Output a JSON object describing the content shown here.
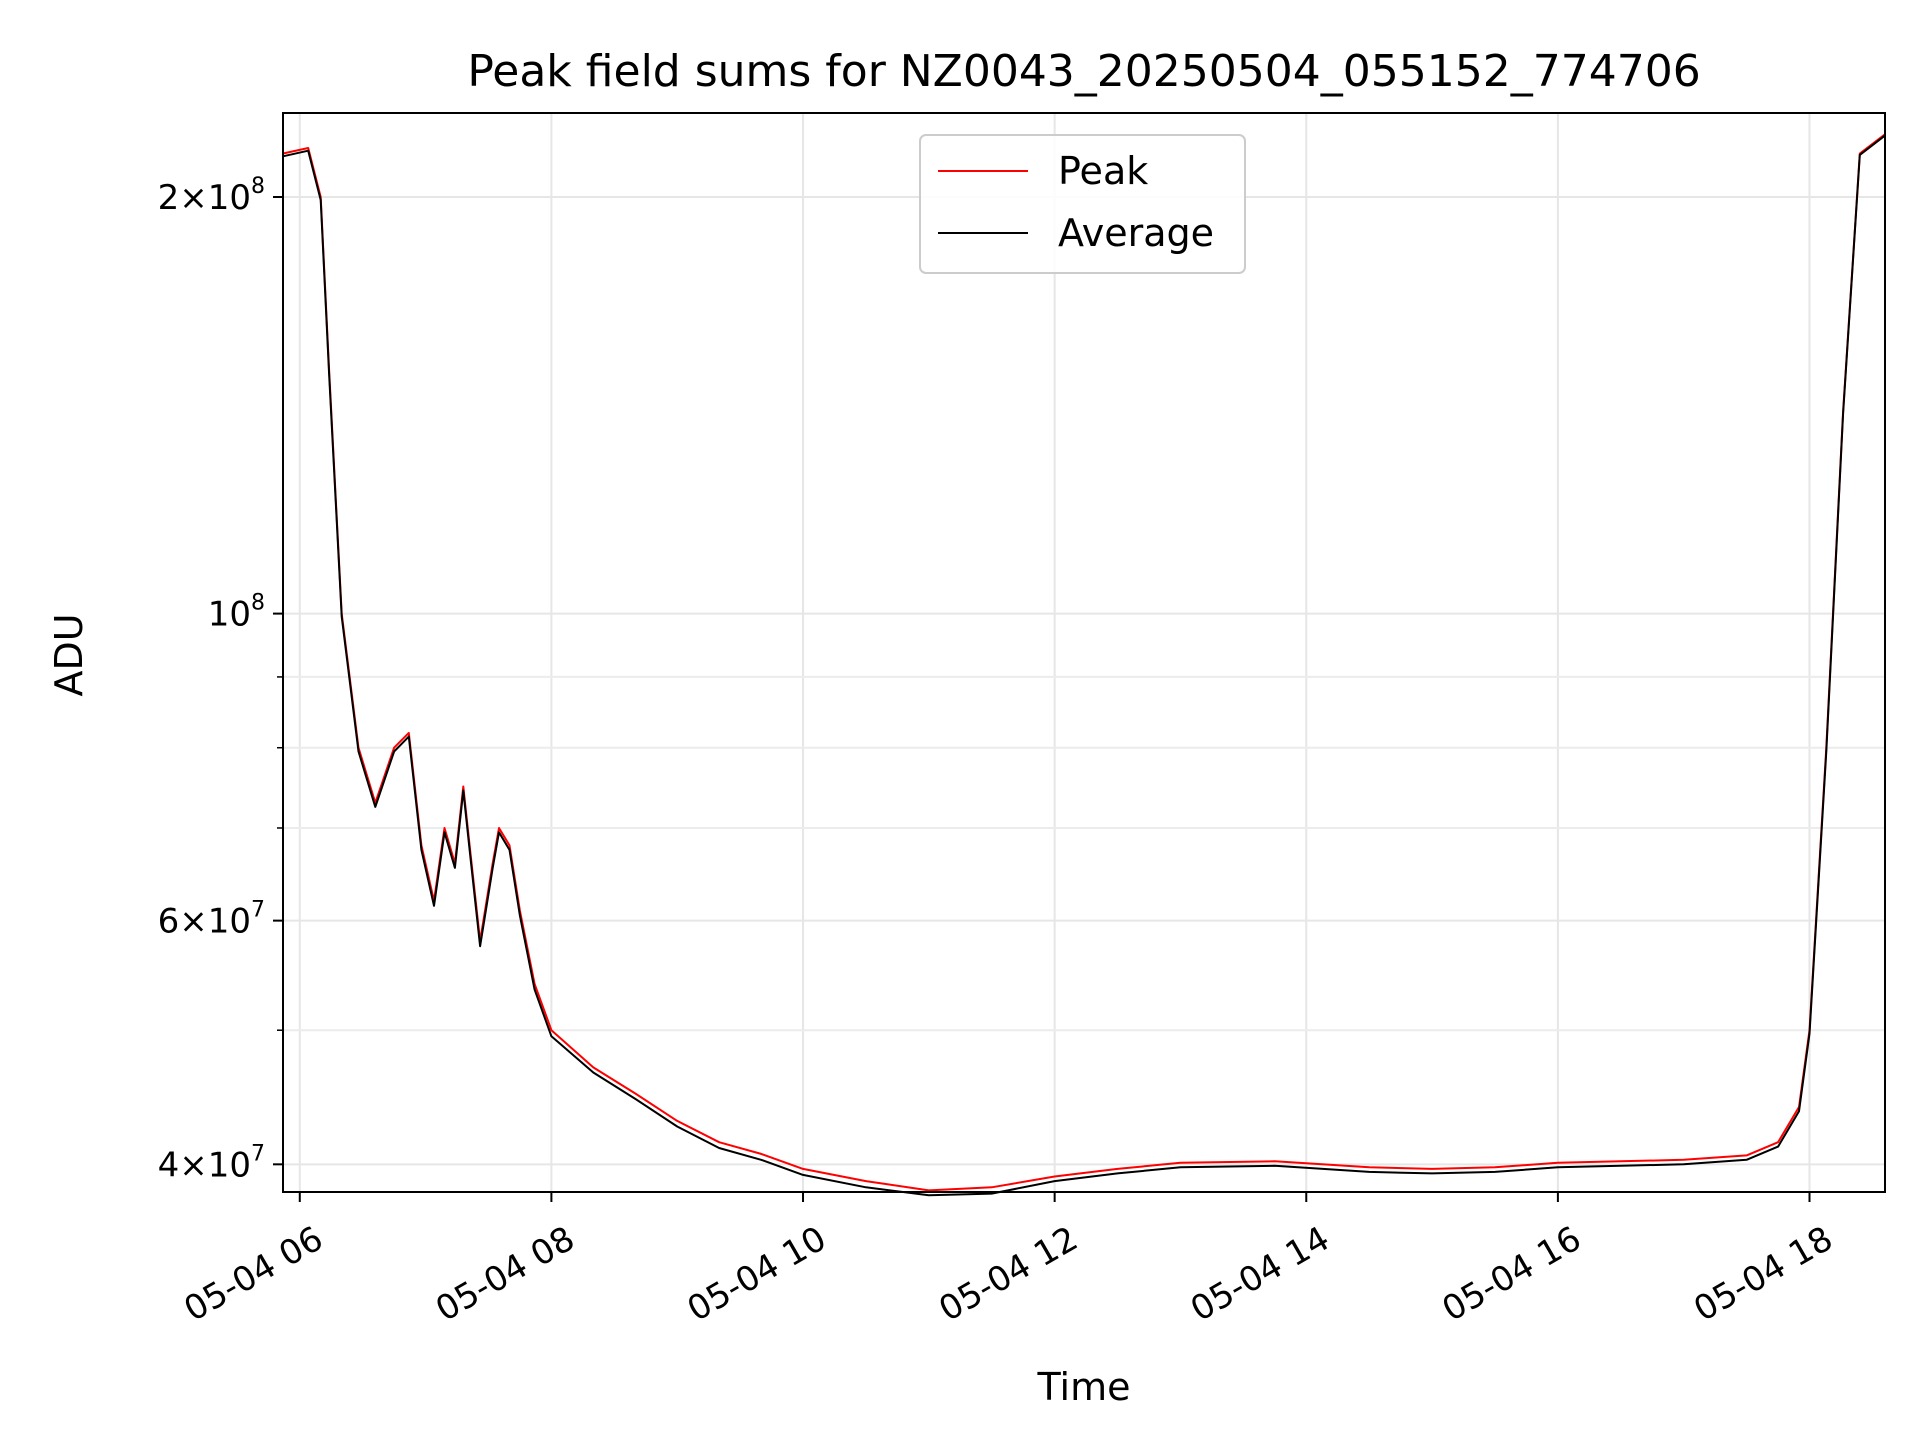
{
  "chart_data": {
    "type": "line",
    "title": "Peak field sums for NZ0043_20250504_055152_774706",
    "xlabel": "Time",
    "ylabel": "ADU",
    "xscale": "time",
    "yscale": "log",
    "grid": true,
    "legend_position": "upper-center",
    "xlim": [
      "2025-05-04 05:52",
      "2025-05-04 18:36"
    ],
    "ylim": [
      38200000,
      230000000
    ],
    "x_ticks": [
      {
        "value": "2025-05-04 06:00",
        "label": "05-04 06"
      },
      {
        "value": "2025-05-04 08:00",
        "label": "05-04 08"
      },
      {
        "value": "2025-05-04 10:00",
        "label": "05-04 10"
      },
      {
        "value": "2025-05-04 12:00",
        "label": "05-04 12"
      },
      {
        "value": "2025-05-04 14:00",
        "label": "05-04 14"
      },
      {
        "value": "2025-05-04 16:00",
        "label": "05-04 16"
      },
      {
        "value": "2025-05-04 18:00",
        "label": "05-04 18"
      }
    ],
    "y_major_ticks": [
      {
        "value": 40000000,
        "mantissa": "4",
        "exponent": "7"
      },
      {
        "value": 60000000,
        "mantissa": "6",
        "exponent": "7"
      },
      {
        "value": 100000000,
        "mantissa": "",
        "exponent": "8"
      },
      {
        "value": 200000000,
        "mantissa": "2",
        "exponent": "8"
      }
    ],
    "y_minor_ticks": [
      50000000,
      70000000,
      80000000,
      90000000
    ],
    "series": [
      {
        "name": "Peak",
        "color": "#ff0000",
        "x": [
          "2025-05-04 05:52",
          "2025-05-04 06:04",
          "2025-05-04 06:10",
          "2025-05-04 06:14",
          "2025-05-04 06:20",
          "2025-05-04 06:28",
          "2025-05-04 06:36",
          "2025-05-04 06:45",
          "2025-05-04 06:52",
          "2025-05-04 06:58",
          "2025-05-04 07:04",
          "2025-05-04 07:09",
          "2025-05-04 07:14",
          "2025-05-04 07:18",
          "2025-05-04 07:21",
          "2025-05-04 07:26",
          "2025-05-04 07:32",
          "2025-05-04 07:35",
          "2025-05-04 07:40",
          "2025-05-04 07:45",
          "2025-05-04 07:52",
          "2025-05-04 08:00",
          "2025-05-04 08:20",
          "2025-05-04 08:40",
          "2025-05-04 09:00",
          "2025-05-04 09:20",
          "2025-05-04 09:40",
          "2025-05-04 10:00",
          "2025-05-04 10:30",
          "2025-05-04 11:00",
          "2025-05-04 11:30",
          "2025-05-04 12:00",
          "2025-05-04 12:30",
          "2025-05-04 13:00",
          "2025-05-04 13:45",
          "2025-05-04 14:30",
          "2025-05-04 15:00",
          "2025-05-04 15:30",
          "2025-05-04 16:00",
          "2025-05-04 16:30",
          "2025-05-04 17:00",
          "2025-05-04 17:30",
          "2025-05-04 17:45",
          "2025-05-04 17:55",
          "2025-05-04 18:00",
          "2025-05-04 18:08",
          "2025-05-04 18:16",
          "2025-05-04 18:24",
          "2025-05-04 18:36"
        ],
        "values": [
          215000000,
          217000000,
          200000000,
          150000000,
          100000000,
          80000000,
          73000000,
          80000000,
          82000000,
          68000000,
          62000000,
          70000000,
          66000000,
          75000000,
          68000000,
          58000000,
          66000000,
          70000000,
          68000000,
          61000000,
          54000000,
          50000000,
          47000000,
          45000000,
          43000000,
          41500000,
          40700000,
          39700000,
          38900000,
          38300000,
          38500000,
          39200000,
          39700000,
          40100000,
          40200000,
          39800000,
          39700000,
          39800000,
          40100000,
          40200000,
          40300000,
          40600000,
          41500000,
          44000000,
          50000000,
          80000000,
          140000000,
          215000000,
          222000000
        ]
      },
      {
        "name": "Average",
        "color": "#000000",
        "x": [
          "2025-05-04 05:52",
          "2025-05-04 06:04",
          "2025-05-04 06:10",
          "2025-05-04 06:14",
          "2025-05-04 06:20",
          "2025-05-04 06:28",
          "2025-05-04 06:36",
          "2025-05-04 06:45",
          "2025-05-04 06:52",
          "2025-05-04 06:58",
          "2025-05-04 07:04",
          "2025-05-04 07:09",
          "2025-05-04 07:14",
          "2025-05-04 07:18",
          "2025-05-04 07:21",
          "2025-05-04 07:26",
          "2025-05-04 07:32",
          "2025-05-04 07:35",
          "2025-05-04 07:40",
          "2025-05-04 07:45",
          "2025-05-04 07:52",
          "2025-05-04 08:00",
          "2025-05-04 08:20",
          "2025-05-04 08:40",
          "2025-05-04 09:00",
          "2025-05-04 09:20",
          "2025-05-04 09:40",
          "2025-05-04 10:00",
          "2025-05-04 10:30",
          "2025-05-04 11:00",
          "2025-05-04 11:30",
          "2025-05-04 12:00",
          "2025-05-04 12:30",
          "2025-05-04 13:00",
          "2025-05-04 13:45",
          "2025-05-04 14:30",
          "2025-05-04 15:00",
          "2025-05-04 15:30",
          "2025-05-04 16:00",
          "2025-05-04 16:30",
          "2025-05-04 17:00",
          "2025-05-04 17:30",
          "2025-05-04 17:45",
          "2025-05-04 17:55",
          "2025-05-04 18:00",
          "2025-05-04 18:08",
          "2025-05-04 18:16",
          "2025-05-04 18:24",
          "2025-05-04 18:36"
        ],
        "values": [
          214000000,
          216000000,
          199000000,
          149000000,
          99500000,
          79500000,
          72500000,
          79500000,
          81500000,
          67500000,
          61500000,
          69500000,
          65500000,
          74500000,
          67500000,
          57500000,
          65500000,
          69500000,
          67500000,
          60500000,
          53500000,
          49500000,
          46600000,
          44600000,
          42600000,
          41100000,
          40300000,
          39300000,
          38500000,
          38000000,
          38100000,
          38900000,
          39400000,
          39800000,
          39900000,
          39500000,
          39400000,
          39500000,
          39800000,
          39900000,
          40000000,
          40300000,
          41200000,
          43700000,
          49700000,
          79500000,
          139500000,
          214500000,
          221500000
        ]
      }
    ]
  }
}
